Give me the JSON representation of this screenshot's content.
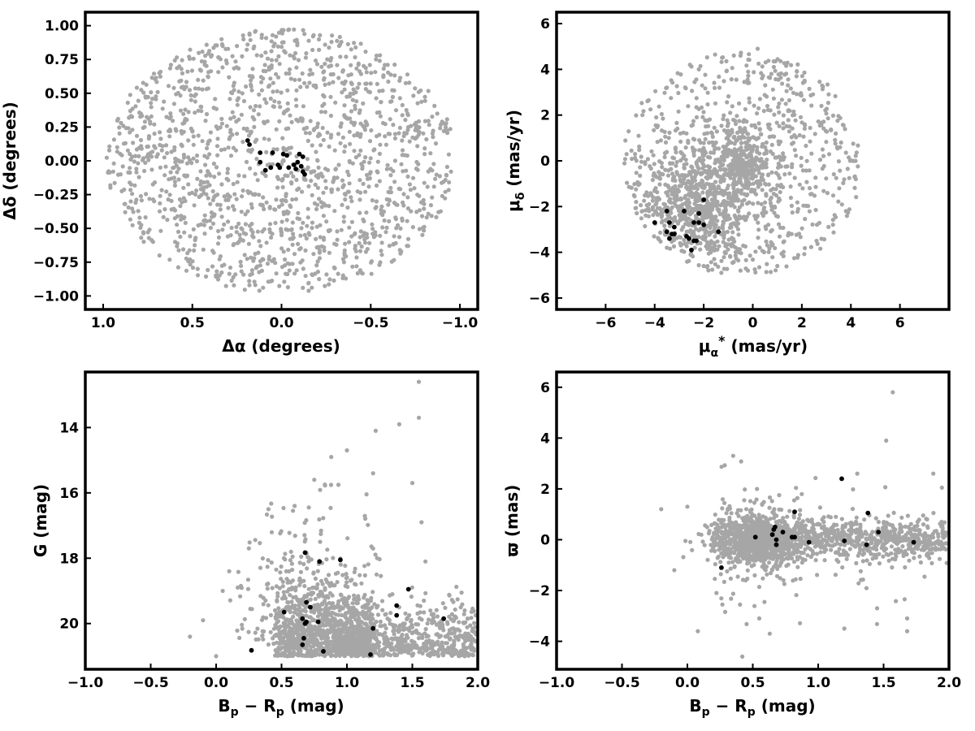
{
  "colors": {
    "field": "#a6a6a6",
    "members": "#000000",
    "frame": "#000000"
  },
  "chart_data": [
    {
      "id": "sky",
      "type": "scatter",
      "xlabel": "Δα (degrees)",
      "ylabel": "Δδ (degrees)",
      "xlim": [
        1.1,
        -1.1
      ],
      "ylim": [
        -1.1,
        1.1
      ],
      "x_inverted": true,
      "xticks": [
        1.0,
        0.5,
        0.0,
        -0.5,
        -1.0
      ],
      "xtick_labels": [
        "1.0",
        "0.5",
        "0.0",
        "−0.5",
        "−1.0"
      ],
      "yticks": [
        1.0,
        0.75,
        0.5,
        0.25,
        0.0,
        -0.25,
        -0.5,
        -0.75,
        -1.0
      ],
      "ytick_labels": [
        "1.00",
        "0.75",
        "0.50",
        "0.25",
        "0.00",
        "−0.25",
        "−0.50",
        "−0.75",
        "−1.00"
      ],
      "grid": false,
      "series": [
        {
          "role": "field",
          "color": "#a6a6a6",
          "description": "about 1500 field stars uniformly filling a circle of radius ~1 degree",
          "points": [
            [
              0.62,
              0.71
            ],
            [
              0.33,
              0.85
            ],
            [
              0.05,
              0.93
            ],
            [
              -0.28,
              0.88
            ],
            [
              -0.55,
              0.74
            ],
            [
              -0.78,
              0.52
            ],
            [
              -0.91,
              0.22
            ],
            [
              -0.95,
              -0.08
            ],
            [
              -0.88,
              -0.38
            ],
            [
              -0.71,
              -0.63
            ],
            [
              -0.45,
              -0.83
            ],
            [
              -0.12,
              -0.94
            ],
            [
              0.18,
              -0.92
            ],
            [
              0.47,
              -0.8
            ],
            [
              0.72,
              -0.6
            ],
            [
              0.88,
              -0.32
            ],
            [
              0.94,
              -0.02
            ],
            [
              0.9,
              0.28
            ],
            [
              0.45,
              0.4
            ],
            [
              0.2,
              0.55
            ],
            [
              -0.1,
              0.6
            ],
            [
              -0.4,
              0.45
            ],
            [
              -0.6,
              0.2
            ],
            [
              -0.55,
              -0.15
            ],
            [
              -0.35,
              -0.45
            ],
            [
              0.0,
              -0.55
            ],
            [
              0.3,
              -0.45
            ],
            [
              0.55,
              -0.2
            ],
            [
              0.6,
              0.1
            ],
            [
              0.25,
              0.2
            ],
            [
              -0.2,
              0.25
            ],
            [
              -0.25,
              -0.2
            ],
            [
              0.15,
              -0.25
            ]
          ]
        },
        {
          "role": "members",
          "color": "#000000",
          "points": [
            [
              0.19,
              0.15
            ],
            [
              0.18,
              0.12
            ],
            [
              0.12,
              0.06
            ],
            [
              0.12,
              -0.01
            ],
            [
              0.09,
              -0.07
            ],
            [
              0.05,
              0.06
            ],
            [
              0.02,
              -0.03
            ],
            [
              0.01,
              -0.05
            ],
            [
              -0.01,
              0.05
            ],
            [
              -0.03,
              0.04
            ],
            [
              -0.04,
              -0.05
            ],
            [
              -0.07,
              -0.03
            ],
            [
              -0.09,
              -0.01
            ],
            [
              -0.1,
              0.05
            ],
            [
              -0.11,
              -0.04
            ],
            [
              -0.12,
              0.03
            ],
            [
              -0.12,
              -0.08
            ],
            [
              -0.13,
              -0.1
            ],
            [
              -0.08,
              -0.06
            ],
            [
              0.06,
              -0.05
            ]
          ]
        }
      ]
    },
    {
      "id": "proper-motion",
      "type": "scatter",
      "xlabel": "μα* (mas/yr)",
      "ylabel": "μδ (mas/yr)",
      "xlim": [
        -8,
        8
      ],
      "ylim": [
        -6.5,
        6.5
      ],
      "xticks": [
        -6,
        -4,
        -2,
        0,
        2,
        4,
        6
      ],
      "xtick_labels": [
        "−6",
        "−4",
        "−2",
        "0",
        "2",
        "4",
        "6"
      ],
      "yticks": [
        -6,
        -4,
        -2,
        0,
        2,
        4,
        6
      ],
      "ytick_labels": [
        "−6",
        "−4",
        "−2",
        "0",
        "2",
        "4",
        "6"
      ],
      "grid": false,
      "series": [
        {
          "role": "field",
          "color": "#a6a6a6",
          "description": "about 1500 field stars within a disc of radius ~5 mas/yr centred near (-0.5, -0.3), densest near (-2,-2) and (-0.5,0)",
          "points": [
            [
              -4.8,
              0.3
            ],
            [
              -4.5,
              2.0
            ],
            [
              -3.5,
              3.2
            ],
            [
              -2.2,
              4.0
            ],
            [
              -0.5,
              4.6
            ],
            [
              0.2,
              4.9
            ],
            [
              1.8,
              3.9
            ],
            [
              2.8,
              2.4
            ],
            [
              3.6,
              0.8
            ],
            [
              4.2,
              -0.8
            ],
            [
              3.8,
              -2.2
            ],
            [
              2.6,
              -3.5
            ],
            [
              1.0,
              -4.6
            ],
            [
              -0.5,
              -4.8
            ],
            [
              -2.0,
              -4.6
            ],
            [
              -3.5,
              -3.8
            ],
            [
              -4.5,
              -2.2
            ],
            [
              -1.8,
              -2.0
            ],
            [
              -2.5,
              -1.0
            ],
            [
              -1.0,
              -1.5
            ],
            [
              -0.5,
              0.0
            ],
            [
              0.0,
              0.5
            ],
            [
              -1.5,
              0.8
            ],
            [
              0.5,
              -1.0
            ],
            [
              1.5,
              1.5
            ],
            [
              -3.0,
              -2.0
            ],
            [
              -2.0,
              -3.0
            ],
            [
              -1.5,
              -2.8
            ]
          ]
        },
        {
          "role": "members",
          "color": "#000000",
          "points": [
            [
              -2.0,
              -1.7
            ],
            [
              -3.5,
              -2.2
            ],
            [
              -4.0,
              -2.7
            ],
            [
              -3.4,
              -2.7
            ],
            [
              -3.2,
              -2.9
            ],
            [
              -2.2,
              -2.3
            ],
            [
              -2.0,
              -2.8
            ],
            [
              -2.2,
              -2.7
            ],
            [
              -2.4,
              -2.7
            ],
            [
              -2.8,
              -2.2
            ],
            [
              -3.5,
              -3.1
            ],
            [
              -3.3,
              -3.2
            ],
            [
              -3.2,
              -3.2
            ],
            [
              -2.7,
              -3.3
            ],
            [
              -2.6,
              -3.4
            ],
            [
              -2.3,
              -3.5
            ],
            [
              -2.4,
              -3.5
            ],
            [
              -3.4,
              -3.4
            ],
            [
              -2.5,
              -3.9
            ],
            [
              -1.4,
              -3.1
            ]
          ]
        }
      ]
    },
    {
      "id": "cmd",
      "type": "scatter",
      "xlabel": "Bp − Rp (mag)",
      "ylabel": "G (mag)",
      "xlim": [
        -1.0,
        2.0
      ],
      "ylim": [
        21.4,
        12.3
      ],
      "y_inverted": true,
      "xticks": [
        -1.0,
        -0.5,
        0.0,
        0.5,
        1.0,
        1.5,
        2.0
      ],
      "xtick_labels": [
        "−1.0",
        "−0.5",
        "0.0",
        "0.5",
        "1.0",
        "1.5",
        "2.0"
      ],
      "yticks": [
        20,
        18,
        16,
        14
      ],
      "ytick_labels": [
        "20",
        "18",
        "16",
        "14"
      ],
      "grid": false,
      "series": [
        {
          "role": "field",
          "color": "#a6a6a6",
          "description": "dense band of field stars at G 19-21 for colour 0.3-2.0 with a tail toward bright magnitudes near colour 0.6-1.2",
          "points": [
            [
              0.0,
              21.0
            ],
            [
              -0.2,
              20.4
            ],
            [
              -0.1,
              19.9
            ],
            [
              0.05,
              19.0
            ],
            [
              0.1,
              18.4
            ],
            [
              0.25,
              17.7
            ],
            [
              0.4,
              16.5
            ],
            [
              0.6,
              16.4
            ],
            [
              0.75,
              15.6
            ],
            [
              0.88,
              14.9
            ],
            [
              1.0,
              14.7
            ],
            [
              1.2,
              15.4
            ],
            [
              1.22,
              14.1
            ],
            [
              1.4,
              13.9
            ],
            [
              1.55,
              13.7
            ],
            [
              1.55,
              12.6
            ],
            [
              1.5,
              15.7
            ],
            [
              1.57,
              16.9
            ],
            [
              1.6,
              18.1
            ],
            [
              1.9,
              19.6
            ],
            [
              2.0,
              18.5
            ]
          ]
        },
        {
          "role": "members",
          "color": "#000000",
          "points": [
            [
              0.27,
              20.82
            ],
            [
              0.52,
              19.65
            ],
            [
              0.66,
              20.65
            ],
            [
              0.67,
              20.45
            ],
            [
              0.66,
              19.85
            ],
            [
              0.68,
              20.0
            ],
            [
              0.69,
              19.95
            ],
            [
              0.69,
              19.35
            ],
            [
              0.72,
              19.5
            ],
            [
              0.78,
              19.95
            ],
            [
              0.82,
              20.85
            ],
            [
              0.79,
              18.1
            ],
            [
              0.68,
              17.83
            ],
            [
              0.95,
              18.05
            ],
            [
              1.18,
              20.95
            ],
            [
              1.2,
              20.15
            ],
            [
              1.38,
              19.75
            ],
            [
              1.38,
              19.45
            ],
            [
              1.47,
              18.95
            ],
            [
              1.74,
              19.85
            ]
          ]
        }
      ]
    },
    {
      "id": "parallax",
      "type": "scatter",
      "xlabel": "Bp − Rp (mag)",
      "ylabel": "ϖ (mas)",
      "xlim": [
        -1.0,
        2.0
      ],
      "ylim": [
        -5.1,
        6.6
      ],
      "xticks": [
        -1.0,
        -0.5,
        0.0,
        0.5,
        1.0,
        1.5,
        2.0
      ],
      "xtick_labels": [
        "−1.0",
        "−0.5",
        "0.0",
        "0.5",
        "1.0",
        "1.5",
        "2.0"
      ],
      "yticks": [
        6,
        4,
        2,
        0,
        -2,
        -4
      ],
      "ytick_labels": [
        "6",
        "4",
        "2",
        "0",
        "−2",
        "−4"
      ],
      "grid": false,
      "series": [
        {
          "role": "field",
          "color": "#a6a6a6",
          "description": "horizontal band of field stars around parallax 0 (spread ~±1 mas) for colour 0.2-2.0",
          "points": [
            [
              -0.2,
              1.2
            ],
            [
              -0.1,
              -1.2
            ],
            [
              0.08,
              -3.6
            ],
            [
              0.35,
              3.3
            ],
            [
              0.42,
              -4.6
            ],
            [
              0.55,
              -3.1
            ],
            [
              0.63,
              -3.7
            ],
            [
              1.2,
              -3.5
            ],
            [
              1.45,
              -2.7
            ],
            [
              1.52,
              3.9
            ],
            [
              1.57,
              5.8
            ],
            [
              1.68,
              -3.6
            ],
            [
              1.68,
              -3.1
            ],
            [
              1.88,
              2.6
            ],
            [
              0.0,
              1.3
            ]
          ]
        },
        {
          "role": "members",
          "color": "#000000",
          "points": [
            [
              0.26,
              -1.1
            ],
            [
              0.52,
              0.1
            ],
            [
              0.65,
              0.2
            ],
            [
              0.66,
              0.4
            ],
            [
              0.67,
              0.5
            ],
            [
              0.68,
              0.0
            ],
            [
              0.68,
              -0.2
            ],
            [
              0.73,
              0.3
            ],
            [
              0.8,
              0.1
            ],
            [
              0.82,
              0.1
            ],
            [
              0.82,
              1.1
            ],
            [
              0.93,
              -0.1
            ],
            [
              1.18,
              2.4
            ],
            [
              1.2,
              -0.05
            ],
            [
              1.37,
              -0.2
            ],
            [
              1.38,
              1.05
            ],
            [
              1.46,
              0.3
            ],
            [
              1.73,
              -0.1
            ]
          ]
        }
      ]
    }
  ]
}
